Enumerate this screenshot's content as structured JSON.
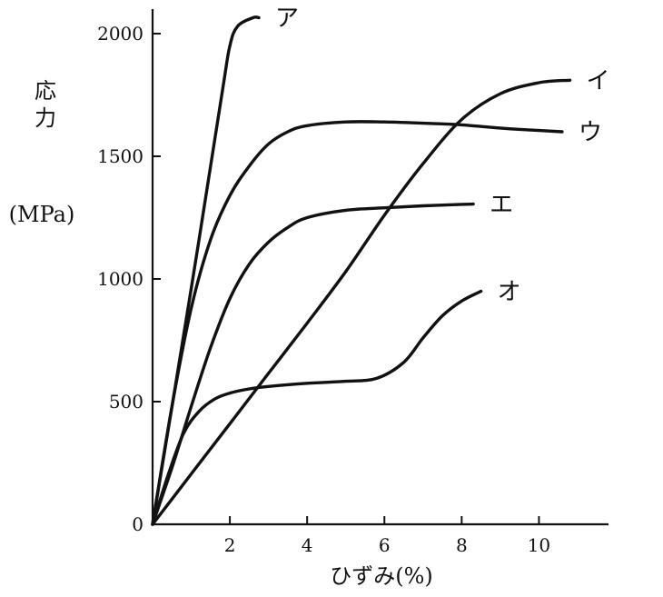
{
  "chart_data": {
    "type": "line",
    "title": "",
    "xlabel": "ひずみ(%)",
    "ylabel_lines": [
      "応",
      "力"
    ],
    "yunit": "(MPa)",
    "xlim": [
      0,
      11.8
    ],
    "ylim": [
      0,
      2100
    ],
    "xticks": [
      2,
      4,
      6,
      8,
      10
    ],
    "yticks": [
      0,
      500,
      1000,
      1500,
      2000
    ],
    "xtick_labels": [
      "2",
      "4",
      "6",
      "8",
      "10"
    ],
    "ytick_labels": [
      "0",
      "500",
      "1000",
      "1500",
      "2000"
    ],
    "grid": false,
    "series": [
      {
        "name": "ア",
        "x": [
          0,
          1.0,
          1.8,
          2.0,
          2.2,
          2.6,
          2.75
        ],
        "y": [
          0,
          960,
          1760,
          1950,
          2030,
          2065,
          2065
        ]
      },
      {
        "name": "イ",
        "x": [
          0,
          1.0,
          2.0,
          3.0,
          4.0,
          5.0,
          6.0,
          7.0,
          8.0,
          9.0,
          10.0,
          10.8
        ],
        "y": [
          0,
          205,
          410,
          615,
          820,
          1030,
          1260,
          1470,
          1650,
          1755,
          1800,
          1810
        ]
      },
      {
        "name": "ウ",
        "x": [
          0,
          0.5,
          1.0,
          1.5,
          2.0,
          2.5,
          3.0,
          3.5,
          4.0,
          5.0,
          6.0,
          7.0,
          8.0,
          9.0,
          10.0,
          10.6
        ],
        "y": [
          0,
          480,
          880,
          1160,
          1340,
          1460,
          1550,
          1600,
          1625,
          1640,
          1640,
          1635,
          1628,
          1615,
          1605,
          1600
        ]
      },
      {
        "name": "エ",
        "x": [
          0,
          0.5,
          1.0,
          1.5,
          2.0,
          2.5,
          3.0,
          3.5,
          4.0,
          5.0,
          6.0,
          7.0,
          8.0,
          8.3
        ],
        "y": [
          0,
          230,
          480,
          720,
          920,
          1060,
          1150,
          1210,
          1250,
          1280,
          1290,
          1298,
          1304,
          1305
        ]
      },
      {
        "name": "オ",
        "x": [
          0,
          0.4,
          0.8,
          1.2,
          1.6,
          2.0,
          2.5,
          3.0,
          4.0,
          5.0,
          5.8,
          6.5,
          7.0,
          7.5,
          8.0,
          8.5
        ],
        "y": [
          0,
          200,
          370,
          460,
          510,
          535,
          552,
          562,
          575,
          583,
          595,
          660,
          760,
          850,
          910,
          950
        ]
      }
    ]
  }
}
